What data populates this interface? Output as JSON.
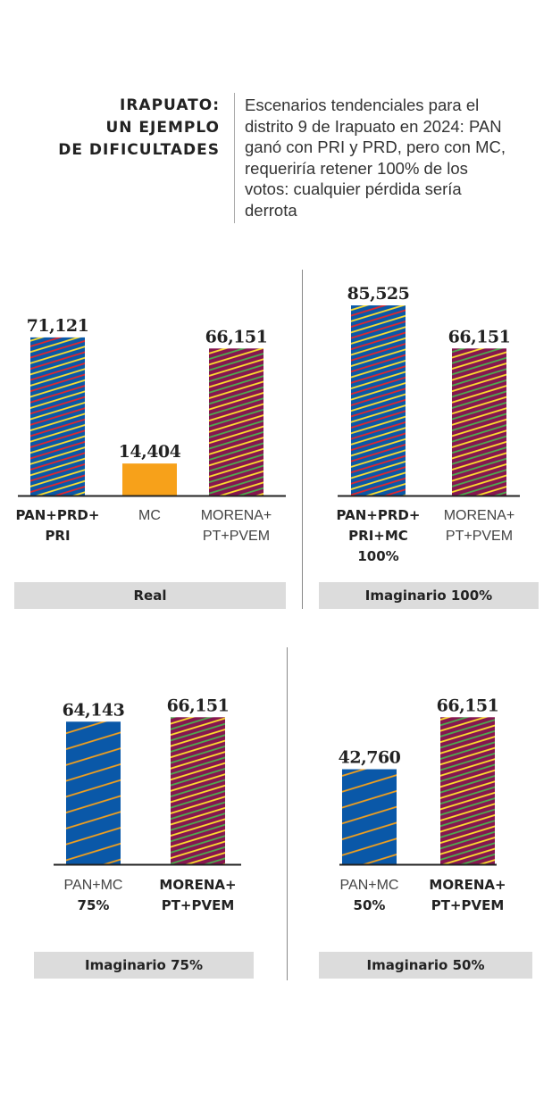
{
  "header": {
    "title": "IRAPUATO:\nUN EJEMPLO\nDE DIFICULTADES",
    "description": "Escenarios tendenciales para el distrito 9 de Irapuato en 2024: PAN ganó con PRI y PRD, pero con MC, requeriría retener 100% de los votos: cualquier pérdida sería derrota"
  },
  "colors": {
    "pan_blue": "#0a58a8",
    "pri_red": "#e3262b",
    "prd_yellow": "#ffe12e",
    "mc_orange": "#f7a11a",
    "morena_maroon": "#861650",
    "pvem_green": "#4cae4f",
    "panel_label_bg": "#dcdcdc"
  },
  "chart_data": [
    {
      "type": "bar",
      "title": "Real",
      "categories": [
        "PAN+PRD+ PRI",
        "MC",
        "MORENA+ PT+PVEM"
      ],
      "values": [
        71121,
        14404,
        66151
      ],
      "value_labels": [
        "71,121",
        "14,404",
        "66,151"
      ],
      "category_lines": [
        [
          {
            "text": "PAN+PRD+",
            "bold": true
          },
          {
            "text": "PRI",
            "bold": true
          }
        ],
        [
          {
            "text": "MC",
            "bold": false
          }
        ],
        [
          {
            "text": "MORENA+",
            "bold": false
          },
          {
            "text": "PT+PVEM",
            "bold": false
          }
        ]
      ],
      "fills": [
        "pan_pri_prd",
        "mc",
        "morena_pt_pvem"
      ]
    },
    {
      "type": "bar",
      "title": "Imaginario 100%",
      "categories": [
        "PAN+PRD+ PRI+MC 100%",
        "MORENA+ PT+PVEM"
      ],
      "values": [
        85525,
        66151
      ],
      "value_labels": [
        "85,525",
        "66,151"
      ],
      "category_lines": [
        [
          {
            "text": "PAN+PRD+",
            "bold": true
          },
          {
            "text": "PRI+MC",
            "bold": true
          },
          {
            "text": "100%",
            "bold": true
          }
        ],
        [
          {
            "text": "MORENA+",
            "bold": false
          },
          {
            "text": "PT+PVEM",
            "bold": false
          }
        ]
      ],
      "fills": [
        "pan_pri_prd",
        "morena_pt_pvem"
      ]
    },
    {
      "type": "bar",
      "title": "Imaginario 75%",
      "categories": [
        "PAN+MC 75%",
        "MORENA+ PT+PVEM"
      ],
      "values": [
        64143,
        66151
      ],
      "value_labels": [
        "64,143",
        "66,151"
      ],
      "category_lines": [
        [
          {
            "text": "PAN+MC",
            "bold": false
          },
          {
            "text": "75%",
            "bold": true
          }
        ],
        [
          {
            "text": "MORENA+",
            "bold": true
          },
          {
            "text": "PT+PVEM",
            "bold": true
          }
        ]
      ],
      "fills": [
        "pan_mc",
        "morena_pt_pvem"
      ]
    },
    {
      "type": "bar",
      "title": "Imaginario 50%",
      "categories": [
        "PAN+MC 50%",
        "MORENA+ PT+PVEM"
      ],
      "values": [
        42760,
        66151
      ],
      "value_labels": [
        "42,760",
        "66,151"
      ],
      "category_lines": [
        [
          {
            "text": "PAN+MC",
            "bold": false
          },
          {
            "text": "50%",
            "bold": true
          }
        ],
        [
          {
            "text": "MORENA+",
            "bold": true
          },
          {
            "text": "PT+PVEM",
            "bold": true
          }
        ]
      ],
      "fills": [
        "pan_mc",
        "morena_pt_pvem"
      ]
    }
  ]
}
